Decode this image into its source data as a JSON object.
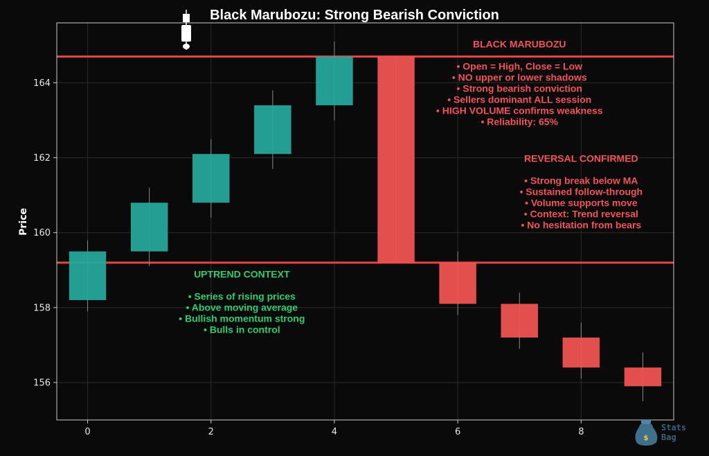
{
  "chart_data": {
    "type": "candlestick",
    "title": "Black Marubozu: Strong Bearish Conviction",
    "ylabel": "Price",
    "xlim": [
      -0.5,
      9.5
    ],
    "ylim": [
      155.0,
      165.6
    ],
    "x_ticks": [
      0,
      2,
      4,
      6,
      8
    ],
    "y_ticks": [
      156,
      158,
      160,
      162,
      164
    ],
    "grid": true,
    "candles": [
      {
        "x": 0,
        "open": 158.2,
        "high": 159.8,
        "low": 157.9,
        "close": 159.5,
        "direction": "up"
      },
      {
        "x": 1,
        "open": 159.5,
        "high": 161.2,
        "low": 159.1,
        "close": 160.8,
        "direction": "up"
      },
      {
        "x": 2,
        "open": 160.8,
        "high": 162.5,
        "low": 160.4,
        "close": 162.1,
        "direction": "up"
      },
      {
        "x": 3,
        "open": 162.1,
        "high": 163.8,
        "low": 161.7,
        "close": 163.4,
        "direction": "up"
      },
      {
        "x": 4,
        "open": 163.4,
        "high": 165.1,
        "low": 163.0,
        "close": 164.7,
        "direction": "up"
      },
      {
        "x": 5,
        "open": 164.7,
        "high": 164.7,
        "low": 159.2,
        "close": 159.2,
        "direction": "down"
      },
      {
        "x": 6,
        "open": 159.2,
        "high": 159.5,
        "low": 157.8,
        "close": 158.1,
        "direction": "down"
      },
      {
        "x": 7,
        "open": 158.1,
        "high": 158.4,
        "low": 156.9,
        "close": 157.2,
        "direction": "down"
      },
      {
        "x": 8,
        "open": 157.2,
        "high": 157.6,
        "low": 156.1,
        "close": 156.4,
        "direction": "down"
      },
      {
        "x": 9,
        "open": 156.4,
        "high": 156.8,
        "low": 155.5,
        "close": 155.9,
        "direction": "down"
      }
    ],
    "hlines": [
      164.7,
      159.2
    ],
    "annotations": [
      {
        "name": "black-marubozu",
        "x": 7.0,
        "y": 164.0,
        "color": "#f05454",
        "lines": [
          "BLACK MARUBOZU",
          "",
          "• Open = High, Close = Low",
          "• NO upper or lower shadows",
          "• Strong bearish conviction",
          "• Sellers dominant ALL session",
          "• HIGH VOLUME confirms weakness",
          "• Reliability: 65%"
        ]
      },
      {
        "name": "reversal-confirmed",
        "x": 8.0,
        "y": 161.1,
        "color": "#f05454",
        "lines": [
          "REVERSAL CONFIRMED",
          "",
          "• Strong break below MA",
          "• Sustained follow-through",
          "• Volume supports move",
          "• Context: Trend reversal",
          "• No hesitation from bears"
        ]
      },
      {
        "name": "uptrend-context",
        "x": 2.5,
        "y": 158.15,
        "color": "#2ecc71",
        "lines": [
          "UPTREND CONTEXT",
          "",
          "• Series of rising prices",
          "• Above moving average",
          "• Bullish momentum strong",
          "• Bulls in control"
        ]
      }
    ],
    "colors": {
      "up": "#26a69a",
      "down": "#ef5350",
      "hline": "#e84545",
      "background": "#0a0a0a",
      "axes": "#cccccc",
      "grid": "#2a2a2a",
      "wick": "#8a8a8a"
    },
    "title_icon": "candle-icon"
  },
  "watermark": {
    "line1": "Stats",
    "line2": "Bag",
    "icon": "money-bag-icon"
  }
}
